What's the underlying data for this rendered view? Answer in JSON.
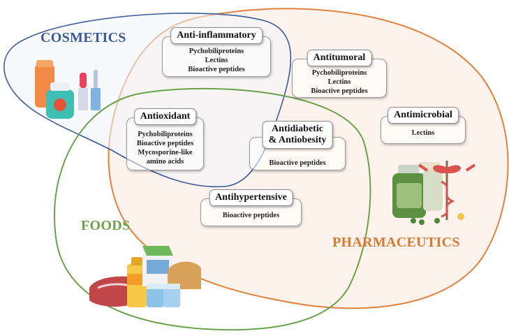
{
  "sets": {
    "cosmetics": {
      "label": "COSMETICS",
      "color": "#3b5a9a"
    },
    "pharmaceutics": {
      "label": "PHARMACEUTICS",
      "color": "#d9792f"
    },
    "foods": {
      "label": "FOODS",
      "color": "#6aa24a"
    }
  },
  "cards": {
    "anti_inflammatory": {
      "title": "Anti-inflammatory",
      "items": [
        "Pychobiliproteins",
        "Lectins",
        "Bioactive peptides"
      ]
    },
    "antitumoral": {
      "title": "Antitumoral",
      "items": [
        "Pychobiliproteins",
        "Lectins",
        "Bioactive peptides"
      ]
    },
    "antimicrobial": {
      "title": "Antimicrobial",
      "items": [
        "Lectins"
      ]
    },
    "antioxidant": {
      "title": "Antioxidant",
      "items": [
        "Pychobiliproteins",
        "Bioactive peptides",
        "Mycosporine-like",
        "amino acids"
      ]
    },
    "antidiabetic": {
      "title_line1": "Antidiabetic",
      "title_line2": "& Antiobesity",
      "items": [
        "Bioactive peptides"
      ]
    },
    "antihypertensive": {
      "title": "Antihypertensive",
      "items": [
        "Bioactive peptides"
      ]
    }
  },
  "icons": [
    "cosmetics-products-icon",
    "pharmaceutics-icon",
    "foods-icon"
  ]
}
